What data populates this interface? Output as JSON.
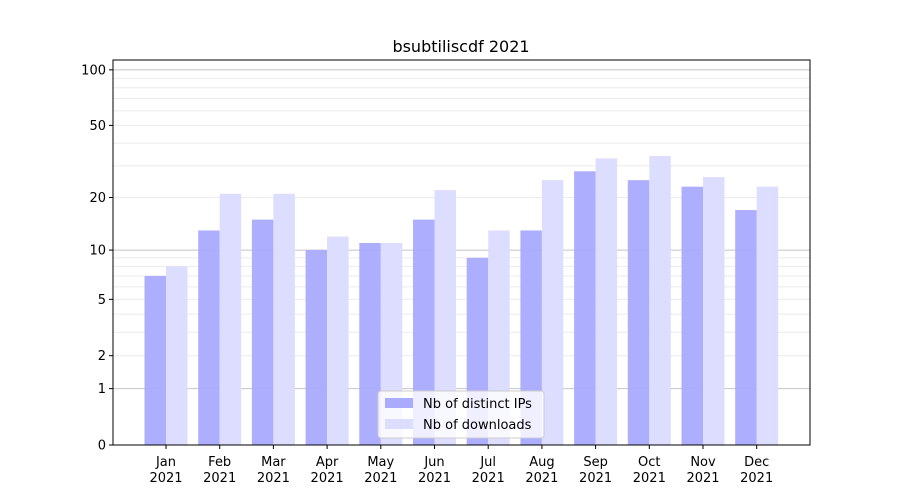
{
  "chart_data": {
    "type": "bar",
    "title": "bsubtiliscdf 2021",
    "xlabel": "",
    "ylabel": "",
    "yscale": "symlog (log10(1+y))",
    "ylim": [
      0,
      113
    ],
    "yticks": [
      0,
      1,
      2,
      5,
      10,
      20,
      50,
      100
    ],
    "grid": true,
    "legend_position": "lower-center",
    "categories": [
      "Jan\n2021",
      "Feb\n2021",
      "Mar\n2021",
      "Apr\n2021",
      "May\n2021",
      "Jun\n2021",
      "Jul\n2021",
      "Aug\n2021",
      "Sep\n2021",
      "Oct\n2021",
      "Nov\n2021",
      "Dec\n2021"
    ],
    "series": [
      {
        "name": "Nb of distinct IPs",
        "color": "#aaaaff",
        "values": [
          7,
          13,
          15,
          10,
          11,
          15,
          9,
          13,
          28,
          25,
          23,
          17
        ]
      },
      {
        "name": "Nb of downloads",
        "color": "#ddddff",
        "values": [
          8,
          21,
          21,
          12,
          11,
          22,
          13,
          25,
          33,
          34,
          26,
          23
        ]
      }
    ]
  }
}
